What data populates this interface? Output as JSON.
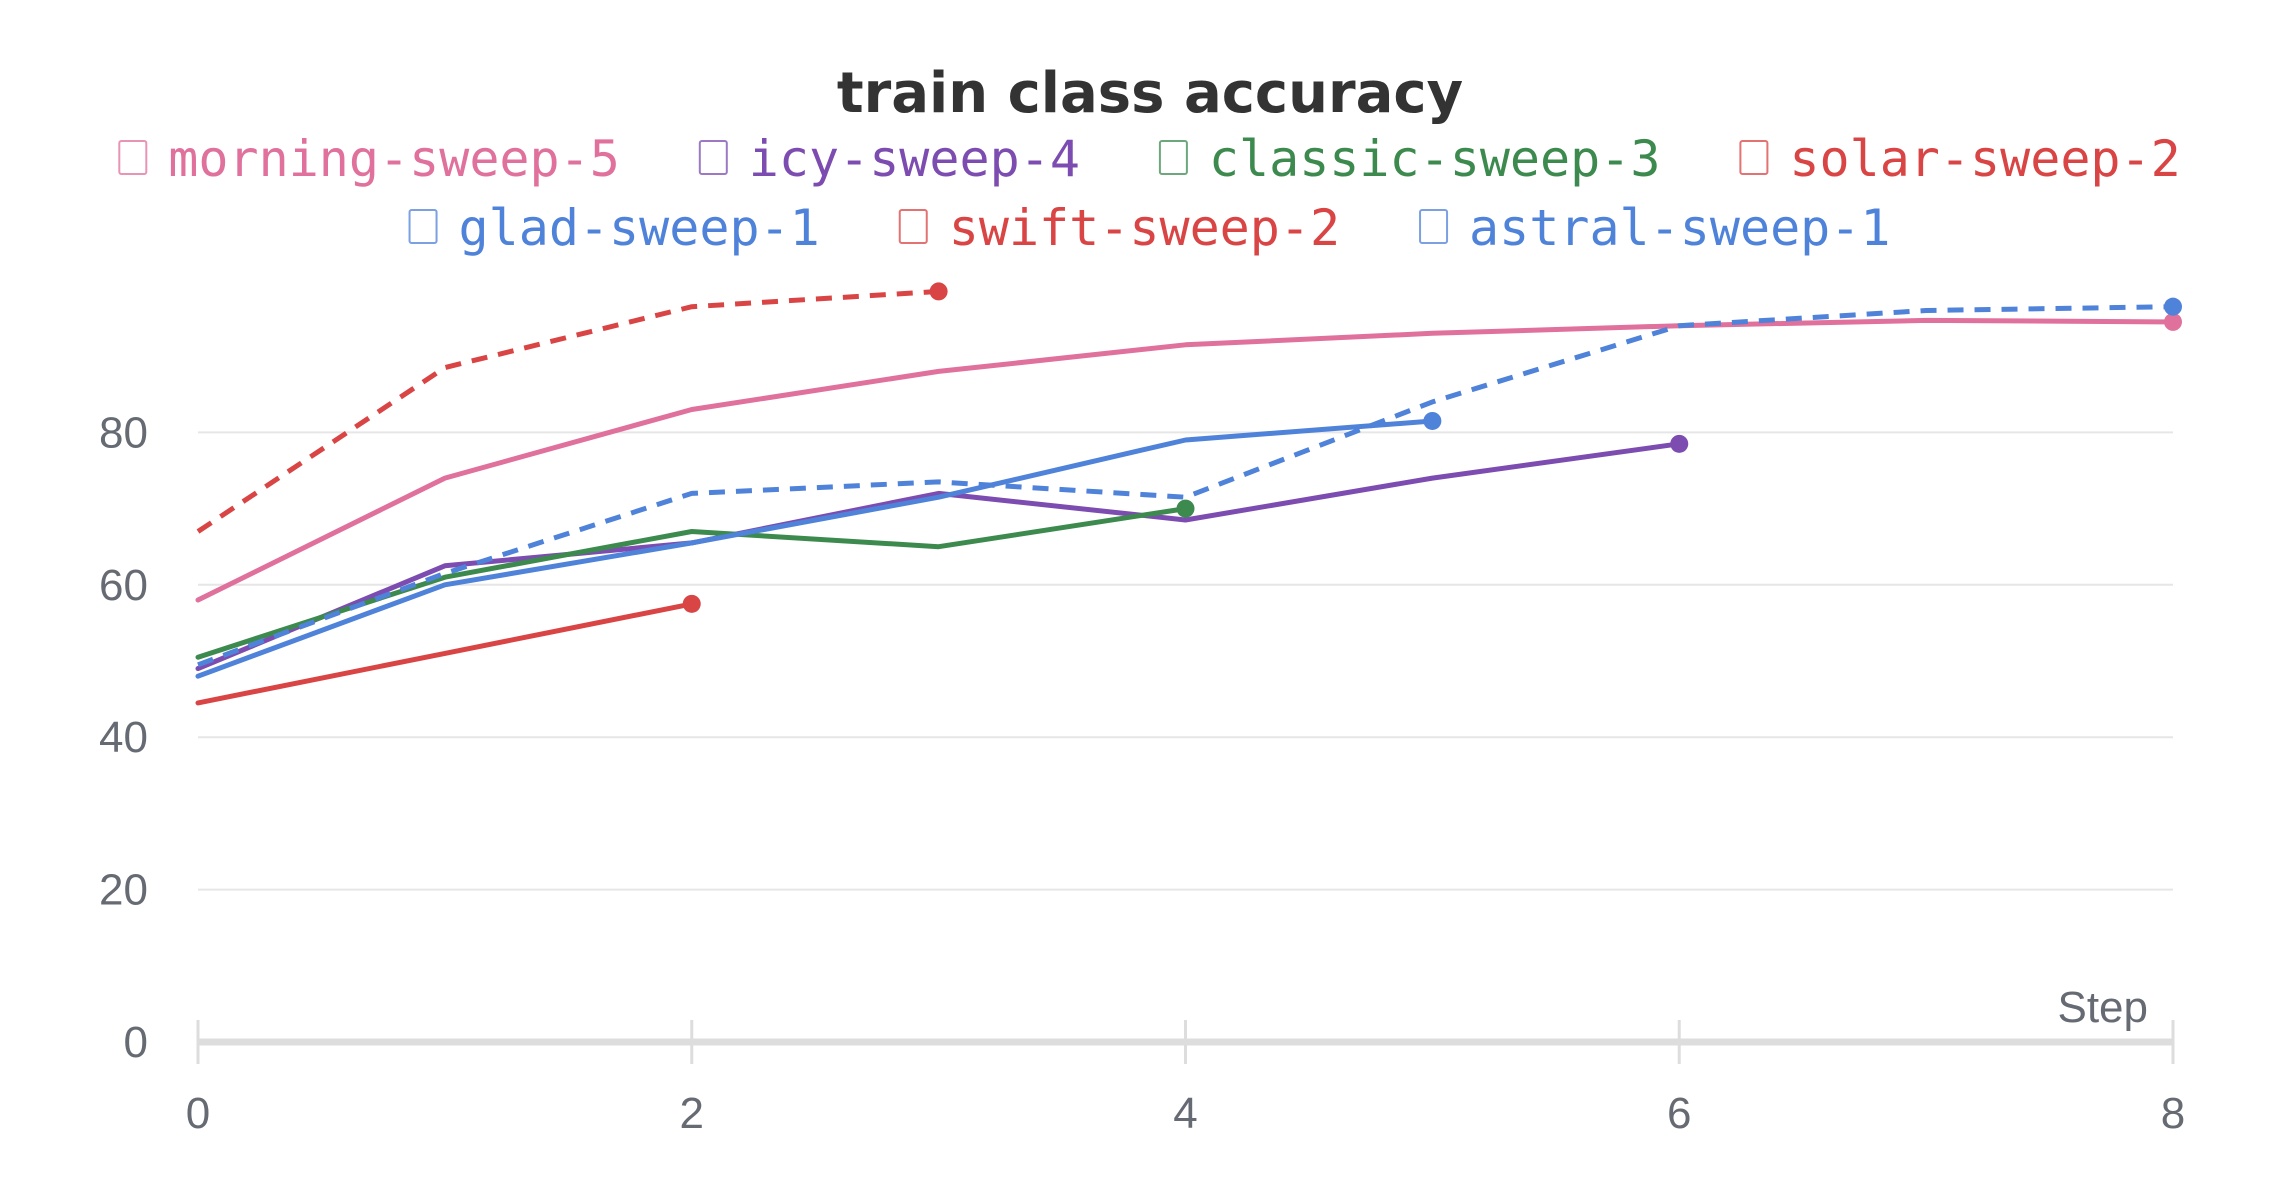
{
  "chart_data": {
    "type": "line",
    "title": "train class accuracy",
    "xlabel": "Step",
    "ylabel": "",
    "xlim": [
      0,
      8
    ],
    "ylim": [
      0,
      100
    ],
    "x_ticks": [
      0,
      2,
      4,
      6,
      8
    ],
    "y_ticks": [
      0,
      20,
      40,
      60,
      80
    ],
    "grid": true,
    "legend_position": "top",
    "series": [
      {
        "name": "morning-sweep-5",
        "color": "#e0709c",
        "dash": false,
        "x": [
          0,
          1,
          2,
          3,
          4,
          5,
          6,
          7,
          8
        ],
        "y": [
          58,
          74,
          83,
          88,
          91.5,
          93,
          94,
          94.7,
          94.5
        ]
      },
      {
        "name": "icy-sweep-4",
        "color": "#7c4cb0",
        "dash": false,
        "x": [
          0,
          1,
          2,
          3,
          4,
          5,
          6
        ],
        "y": [
          49,
          62.5,
          65.5,
          72,
          68.5,
          74,
          78.5
        ]
      },
      {
        "name": "classic-sweep-3",
        "color": "#3d8a4f",
        "dash": false,
        "x": [
          0,
          1,
          2,
          3,
          4
        ],
        "y": [
          50.5,
          61,
          67,
          65,
          70
        ]
      },
      {
        "name": "solar-sweep-2",
        "color": "#d94444",
        "dash": false,
        "x": [
          0,
          1,
          2
        ],
        "y": [
          44.5,
          51,
          57.5
        ]
      },
      {
        "name": "glad-sweep-1",
        "color": "#4f82d9",
        "dash": false,
        "x": [
          0,
          1,
          2,
          3,
          4,
          5
        ],
        "y": [
          48,
          60,
          65.5,
          71.5,
          79,
          81.5
        ]
      },
      {
        "name": "swift-sweep-2",
        "color": "#d94444",
        "dash": true,
        "x": [
          0,
          1,
          2,
          3
        ],
        "y": [
          67,
          88.5,
          96.5,
          98.5
        ]
      },
      {
        "name": "astral-sweep-1",
        "color": "#4f82d9",
        "dash": true,
        "x": [
          0,
          1,
          2,
          3,
          4,
          5,
          6,
          7,
          8
        ],
        "y": [
          49.5,
          61.5,
          72,
          73.5,
          71.5,
          84,
          94,
          96,
          96.5
        ]
      }
    ]
  }
}
